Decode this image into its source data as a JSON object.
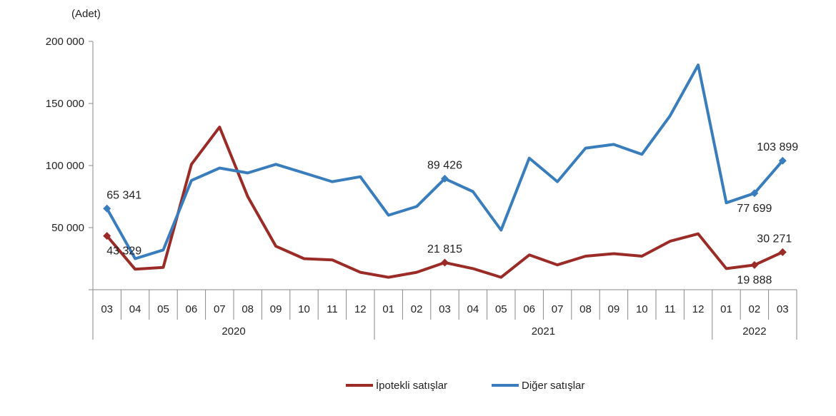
{
  "chart_data": {
    "type": "line",
    "unit_label": "(Adet)",
    "ylim": [
      0,
      200000
    ],
    "y_ticks": [
      {
        "value": 50000,
        "label": "50 000"
      },
      {
        "value": 100000,
        "label": "100 000"
      },
      {
        "value": 150000,
        "label": "150 000"
      },
      {
        "value": 200000,
        "label": "200 000"
      }
    ],
    "categories": [
      "03",
      "04",
      "05",
      "06",
      "07",
      "08",
      "09",
      "10",
      "11",
      "12",
      "01",
      "02",
      "03",
      "04",
      "05",
      "06",
      "07",
      "08",
      "09",
      "10",
      "11",
      "12",
      "01",
      "02",
      "03"
    ],
    "year_groups": [
      {
        "label": "2020",
        "start": 0,
        "end": 9
      },
      {
        "label": "2021",
        "start": 10,
        "end": 21
      },
      {
        "label": "2022",
        "start": 22,
        "end": 24
      }
    ],
    "grid": false,
    "legend_position": "bottom",
    "series": [
      {
        "name": "İpotekli satışlar",
        "color": "#9b2b27",
        "values": [
          43329,
          16500,
          18000,
          101000,
          131000,
          75000,
          35000,
          25000,
          24000,
          14000,
          10000,
          14000,
          21815,
          17000,
          10000,
          28000,
          20000,
          27000,
          29000,
          27000,
          39000,
          45000,
          17000,
          19888,
          30271
        ],
        "labels": [
          {
            "index": 0,
            "text": "43 329",
            "pos": "below"
          },
          {
            "index": 12,
            "text": "21 815",
            "pos": "above"
          },
          {
            "index": 23,
            "text": "19 888",
            "pos": "below"
          },
          {
            "index": 24,
            "text": "30 271",
            "pos": "above"
          }
        ]
      },
      {
        "name": "Diğer satışlar",
        "color": "#3a7dbd",
        "values": [
          65341,
          25000,
          32000,
          88000,
          98000,
          94000,
          101000,
          94000,
          87000,
          91000,
          60000,
          67000,
          89426,
          79000,
          48000,
          106000,
          87000,
          114000,
          117000,
          109000,
          140000,
          181000,
          70000,
          77699,
          103899
        ],
        "labels": [
          {
            "index": 0,
            "text": "65 341",
            "pos": "above"
          },
          {
            "index": 12,
            "text": "89 426",
            "pos": "above"
          },
          {
            "index": 23,
            "text": "77 699",
            "pos": "below"
          },
          {
            "index": 24,
            "text": "103 899",
            "pos": "above"
          }
        ]
      }
    ]
  }
}
